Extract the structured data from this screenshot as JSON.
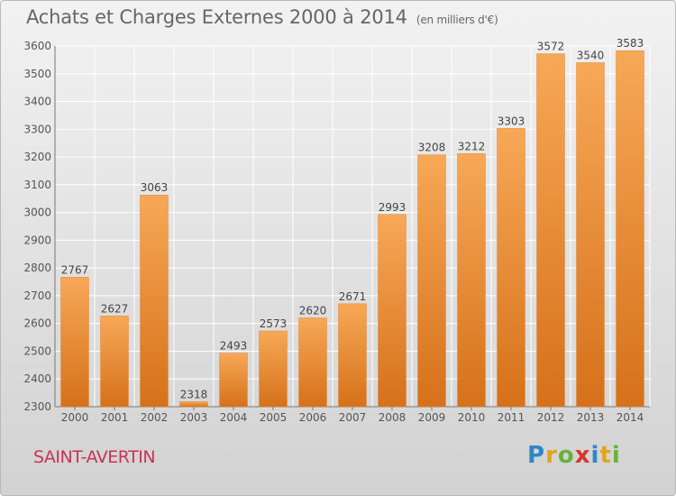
{
  "header": {
    "title": "Achats et Charges Externes 2000 à 2014",
    "unit_note": "(en milliers d'€)"
  },
  "footer": {
    "commune": "SAINT-AVERTIN",
    "logo_text": "Proxiti"
  },
  "colors": {
    "bar_light": "#f7a857",
    "bar_dark": "#d6711a",
    "commune_text": "#c8325a",
    "grid": "#ffffff"
  },
  "chart_data": {
    "type": "bar",
    "title": "Achats et Charges Externes 2000 à 2014",
    "subtitle": "(en milliers d'€)",
    "categories": [
      "2000",
      "2001",
      "2002",
      "2003",
      "2004",
      "2005",
      "2006",
      "2007",
      "2008",
      "2009",
      "2010",
      "2011",
      "2012",
      "2013",
      "2014"
    ],
    "values": [
      2767,
      2627,
      3063,
      2318,
      2493,
      2573,
      2620,
      2671,
      2993,
      3208,
      3212,
      3303,
      3572,
      3540,
      3583
    ],
    "ylim": [
      2300,
      3600
    ],
    "yticks": [
      2300,
      2400,
      2500,
      2600,
      2700,
      2800,
      2900,
      3000,
      3100,
      3200,
      3300,
      3400,
      3500,
      3600
    ],
    "xlabel": "",
    "ylabel": "",
    "grid": true,
    "data_labels": true
  }
}
